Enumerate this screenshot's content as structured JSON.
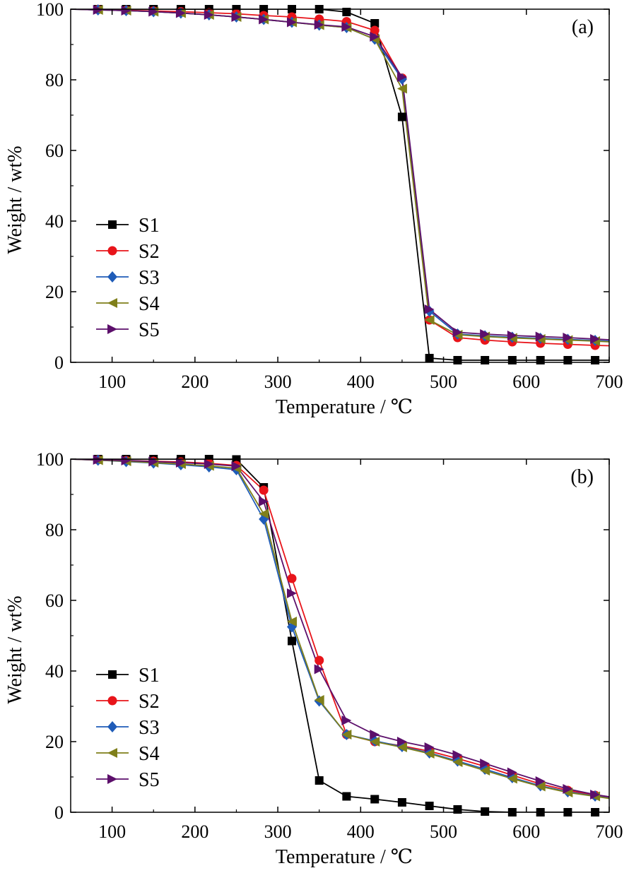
{
  "chart_data": [
    {
      "type": "line",
      "panel_label": "(a)",
      "xlabel": "Temperature / ℃",
      "ylabel": "Weight / wt%",
      "xlim": [
        50,
        700
      ],
      "ylim": [
        0,
        100
      ],
      "xticks": [
        100,
        200,
        300,
        400,
        500,
        600,
        700
      ],
      "yticks": [
        0,
        20,
        40,
        60,
        80,
        100
      ],
      "grid": false,
      "legend_position": "lower-left",
      "series": [
        {
          "name": "S1",
          "color": "#000000",
          "marker": "square",
          "x": [
            50,
            83,
            117,
            150,
            183,
            217,
            250,
            283,
            317,
            350,
            383,
            417,
            450,
            483,
            517,
            550,
            583,
            617,
            650,
            683,
            700
          ],
          "y": [
            100,
            100,
            100,
            100,
            100,
            100,
            100,
            100,
            100,
            100,
            99.2,
            96,
            69.5,
            1.2,
            0.6,
            0.6,
            0.6,
            0.6,
            0.6,
            0.6,
            0.6
          ]
        },
        {
          "name": "S2",
          "color": "#e8141a",
          "marker": "circle",
          "x": [
            50,
            83,
            117,
            150,
            183,
            217,
            250,
            283,
            317,
            350,
            383,
            417,
            450,
            483,
            517,
            550,
            583,
            617,
            650,
            683,
            700
          ],
          "y": [
            100,
            99.9,
            99.7,
            99.5,
            99.3,
            99,
            98.7,
            98.2,
            97.8,
            97.2,
            96.5,
            94,
            80.5,
            12,
            7,
            6.3,
            5.8,
            5.4,
            5.1,
            4.8,
            4.7
          ]
        },
        {
          "name": "S3",
          "color": "#1f5cb8",
          "marker": "diamond",
          "x": [
            50,
            83,
            117,
            150,
            183,
            217,
            250,
            283,
            317,
            350,
            383,
            417,
            450,
            483,
            517,
            550,
            583,
            617,
            650,
            683,
            700
          ],
          "y": [
            100,
            99.8,
            99.6,
            99.3,
            98.9,
            98.4,
            97.8,
            97.1,
            96.3,
            95.5,
            94.8,
            91.5,
            80.2,
            14.5,
            8,
            7.5,
            7.1,
            6.8,
            6.5,
            6.2,
            6
          ]
        },
        {
          "name": "S4",
          "color": "#7f7f1a",
          "marker": "triangle-left",
          "x": [
            50,
            83,
            117,
            150,
            183,
            217,
            250,
            283,
            317,
            350,
            383,
            417,
            450,
            483,
            517,
            550,
            583,
            617,
            650,
            683,
            700
          ],
          "y": [
            100,
            99.8,
            99.6,
            99.3,
            98.9,
            98.4,
            97.8,
            97.1,
            96.3,
            95.5,
            94.8,
            91.5,
            77.5,
            12,
            7.8,
            7.3,
            6.9,
            6.6,
            6.3,
            6,
            5.8
          ]
        },
        {
          "name": "S5",
          "color": "#5c0f6b",
          "marker": "triangle-right",
          "x": [
            50,
            83,
            117,
            150,
            183,
            217,
            250,
            283,
            317,
            350,
            383,
            417,
            450,
            483,
            517,
            550,
            583,
            617,
            650,
            683,
            700
          ],
          "y": [
            100,
            99.8,
            99.6,
            99.3,
            98.9,
            98.4,
            97.8,
            97.1,
            96.3,
            95.6,
            95,
            92.2,
            80.8,
            15,
            8.5,
            8,
            7.6,
            7.3,
            7,
            6.6,
            6.4
          ]
        }
      ]
    },
    {
      "type": "line",
      "panel_label": "(b)",
      "xlabel": "Temperature / ℃",
      "ylabel": "Weight / wt%",
      "xlim": [
        50,
        700
      ],
      "ylim": [
        0,
        100
      ],
      "xticks": [
        100,
        200,
        300,
        400,
        500,
        600,
        700
      ],
      "yticks": [
        0,
        20,
        40,
        60,
        80,
        100
      ],
      "grid": false,
      "legend_position": "lower-left",
      "series": [
        {
          "name": "S1",
          "color": "#000000",
          "marker": "square",
          "x": [
            50,
            83,
            117,
            150,
            183,
            217,
            250,
            283,
            317,
            350,
            383,
            417,
            450,
            483,
            517,
            550,
            583,
            617,
            650,
            683,
            700
          ],
          "y": [
            100,
            100,
            100,
            100,
            100,
            100,
            99.9,
            92,
            48.5,
            9,
            4.5,
            3.7,
            2.8,
            1.8,
            0.8,
            0.2,
            0,
            0,
            0,
            0,
            0
          ]
        },
        {
          "name": "S2",
          "color": "#e8141a",
          "marker": "circle",
          "x": [
            50,
            83,
            117,
            150,
            183,
            217,
            250,
            283,
            317,
            350,
            383,
            417,
            450,
            483,
            517,
            550,
            583,
            617,
            650,
            683,
            700
          ],
          "y": [
            100,
            99.8,
            99.6,
            99.4,
            99.2,
            98.8,
            98.2,
            91.2,
            66.2,
            43,
            22,
            20,
            18.8,
            17.3,
            15.2,
            13,
            10.5,
            8,
            6.2,
            4.8,
            4.2
          ]
        },
        {
          "name": "S3",
          "color": "#1f5cb8",
          "marker": "diamond",
          "x": [
            50,
            83,
            117,
            150,
            183,
            217,
            250,
            283,
            317,
            350,
            383,
            417,
            450,
            483,
            517,
            550,
            583,
            617,
            650,
            683,
            700
          ],
          "y": [
            100,
            99.7,
            99.3,
            98.9,
            98.4,
            97.8,
            97,
            83,
            52.5,
            31.5,
            22,
            20.2,
            18.6,
            16.8,
            14.5,
            12.2,
            9.8,
            7.5,
            5.8,
            4.6,
            4
          ]
        },
        {
          "name": "S4",
          "color": "#7f7f1a",
          "marker": "triangle-left",
          "x": [
            50,
            83,
            117,
            150,
            183,
            217,
            250,
            283,
            317,
            350,
            383,
            417,
            450,
            483,
            517,
            550,
            583,
            617,
            650,
            683,
            700
          ],
          "y": [
            100,
            99.7,
            99.4,
            99,
            98.6,
            98.1,
            97.4,
            84.5,
            54,
            31.8,
            22,
            20,
            18.4,
            16.6,
            14.2,
            11.8,
            9.5,
            7.3,
            5.6,
            4.5,
            3.9
          ]
        },
        {
          "name": "S5",
          "color": "#5c0f6b",
          "marker": "triangle-right",
          "x": [
            50,
            83,
            117,
            150,
            183,
            217,
            250,
            283,
            317,
            350,
            383,
            417,
            450,
            483,
            517,
            550,
            583,
            617,
            650,
            683,
            700
          ],
          "y": [
            100,
            99.8,
            99.6,
            99.3,
            99,
            98.6,
            98,
            88,
            62,
            40.5,
            26,
            22,
            20,
            18.4,
            16.2,
            13.8,
            11.3,
            8.8,
            6.6,
            5,
            4.4
          ]
        }
      ]
    }
  ]
}
